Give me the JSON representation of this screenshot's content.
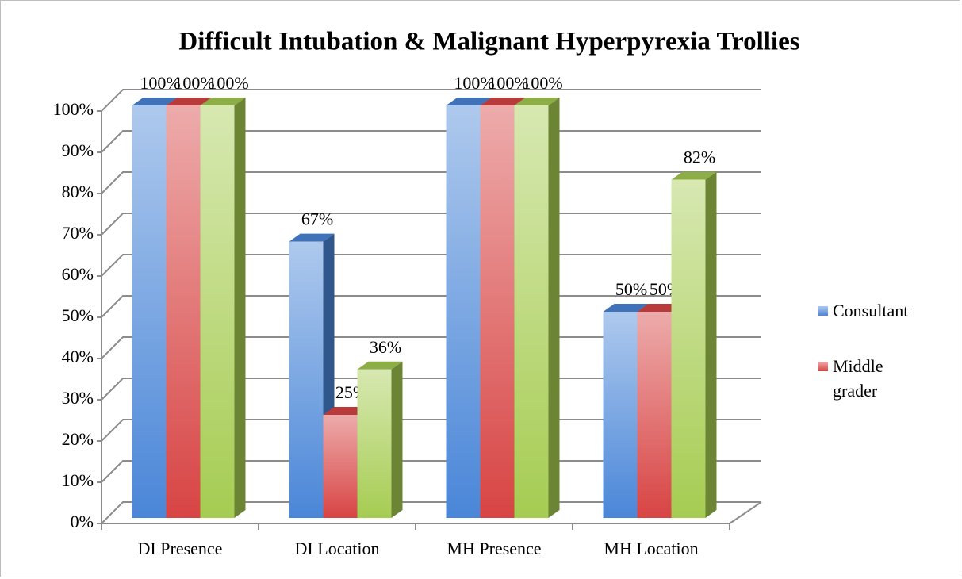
{
  "chart_data": {
    "type": "bar3d",
    "title": "Difficult Intubation & Malignant Hyperpyrexia Trollies",
    "categories": [
      "DI Presence",
      "DI Location",
      "MH Presence",
      "MH Location"
    ],
    "series": [
      {
        "name": "Consultant",
        "color": "#4a86d8",
        "values": [
          100,
          67,
          100,
          50
        ],
        "value_labels": [
          "100%",
          "67%",
          "100%",
          "50%"
        ]
      },
      {
        "name": "Middle grader",
        "color": "#d84444",
        "values": [
          100,
          25,
          100,
          50
        ],
        "value_labels": [
          "100%",
          "25%",
          "100%",
          "50%"
        ]
      },
      {
        "color": "#a6cc52",
        "values": [
          100,
          36,
          100,
          82
        ],
        "value_labels": [
          "100%",
          "36%",
          "100%",
          "82%"
        ]
      }
    ],
    "ylim": [
      0,
      100
    ],
    "yticks": [
      {
        "value": 0,
        "label": "0%"
      },
      {
        "value": 10,
        "label": "10%"
      },
      {
        "value": 20,
        "label": "20%"
      },
      {
        "value": 30,
        "label": "30%"
      },
      {
        "value": 40,
        "label": "40%"
      },
      {
        "value": 50,
        "label": "50%"
      },
      {
        "value": 60,
        "label": "60%"
      },
      {
        "value": 70,
        "label": "70%"
      },
      {
        "value": 80,
        "label": "80%"
      },
      {
        "value": 90,
        "label": "90%"
      },
      {
        "value": 100,
        "label": "100%"
      }
    ],
    "grid": true,
    "legend": "right"
  }
}
